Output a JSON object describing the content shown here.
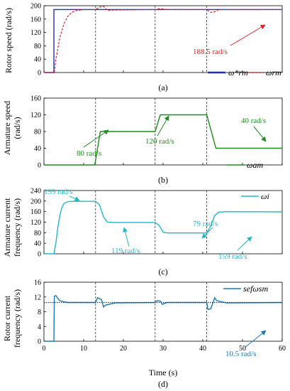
{
  "chart_data": [
    {
      "type": "line",
      "panel": "(a)",
      "ylabel": "Rotor speed (rad/s)",
      "xlim": [
        0,
        60
      ],
      "ylim": [
        0,
        200
      ],
      "yticks": [
        "0",
        "40",
        "80",
        "120",
        "160",
        "200"
      ],
      "series": [
        {
          "name": "ω*rm",
          "color": "#1f2fbf",
          "style": "solid",
          "x": [
            0,
            2.5,
            2.5,
            60
          ],
          "y": [
            0,
            0,
            188.5,
            188.5
          ]
        },
        {
          "name": "ωrm",
          "color": "#e0202a",
          "style": "dashed",
          "x": [
            0,
            2.6,
            3,
            4,
            5,
            6,
            7,
            8,
            10,
            13,
            14,
            15,
            16,
            18,
            28,
            29,
            30,
            31,
            41,
            42,
            43,
            44,
            60
          ],
          "y": [
            0,
            0,
            40,
            105,
            145,
            168,
            180,
            185,
            188,
            188.5,
            196,
            198,
            186,
            187,
            188.5,
            191,
            190,
            188.5,
            188.5,
            180,
            182,
            188,
            188.5
          ]
        }
      ],
      "annotations": [
        {
          "text": "188.5 rad/s",
          "color": "#e0202a"
        }
      ]
    },
    {
      "type": "line",
      "panel": "(b)",
      "ylabel": "Armature speed (rad/s)",
      "xlim": [
        0,
        60
      ],
      "ylim": [
        0,
        160
      ],
      "yticks": [
        "0",
        "40",
        "80",
        "120",
        "160"
      ],
      "series": [
        {
          "name": "ωam",
          "color": "#1e8c1e",
          "style": "solid",
          "x": [
            0,
            12.8,
            14.2,
            28,
            29.3,
            41,
            43.3,
            60
          ],
          "y": [
            0,
            0,
            80,
            80,
            120,
            120,
            40,
            40
          ]
        }
      ],
      "annotations": [
        {
          "text": "80 rad/s",
          "color": "#1e8c1e"
        },
        {
          "text": "120 rad/s",
          "color": "#1e8c1e"
        },
        {
          "text": "40 rad/s",
          "color": "#1e8c1e"
        }
      ]
    },
    {
      "type": "line",
      "panel": "(c)",
      "ylabel": "Armature current frequency (rad/s)",
      "xlim": [
        0,
        60
      ],
      "ylim": [
        0,
        240
      ],
      "yticks": [
        "0",
        "40",
        "80",
        "120",
        "160",
        "200",
        "240"
      ],
      "series": [
        {
          "name": "ωi",
          "color": "#20b8c8",
          "style": "solid",
          "x": [
            0,
            2.5,
            3,
            3.5,
            4,
            4.5,
            5,
            6,
            7,
            8,
            10,
            13,
            14,
            15,
            16,
            18,
            28,
            29,
            30,
            31,
            33,
            41,
            42,
            43,
            44,
            46,
            60
          ],
          "y": [
            0,
            0,
            40,
            100,
            145,
            175,
            190,
            198,
            199,
            199,
            199,
            199,
            185,
            140,
            120,
            119,
            119,
            108,
            82,
            79,
            79,
            79,
            105,
            145,
            158,
            160,
            159
          ]
        }
      ],
      "annotations": [
        {
          "text": "199 rad/s",
          "color": "#20b8c8"
        },
        {
          "text": "119 rad/s",
          "color": "#20b8c8"
        },
        {
          "text": "79 rad/s",
          "color": "#20b8c8"
        },
        {
          "text": "159 rad/s",
          "color": "#20b8c8"
        }
      ]
    },
    {
      "type": "line",
      "panel": "(d)",
      "ylabel": "Rotor current frequency (rad/s)",
      "xlabel": "Time (s)",
      "xlim": [
        0,
        60
      ],
      "ylim": [
        0,
        16
      ],
      "yticks": [
        "0",
        "4",
        "8",
        "12",
        "16"
      ],
      "xticks": [
        "0",
        "10",
        "20",
        "30",
        "40",
        "50",
        "60"
      ],
      "series": [
        {
          "name": "sefωsm",
          "color": "#1a78b8",
          "style": "solid",
          "x": [
            0,
            2.5,
            2.6,
            3,
            3.5,
            4,
            5,
            6,
            8,
            13,
            13.5,
            14.5,
            15,
            15.5,
            18,
            28,
            28.5,
            29.3,
            29.8,
            31,
            41,
            41.3,
            42,
            43,
            43.5,
            46,
            60
          ],
          "y": [
            0,
            0,
            12.2,
            12.4,
            11.6,
            11.0,
            10.7,
            10.5,
            10.5,
            10.5,
            11.8,
            11.3,
            9.3,
            9.8,
            10.4,
            10.5,
            11.0,
            10.9,
            10.0,
            10.5,
            10.5,
            8.6,
            8.8,
            11.8,
            11.0,
            10.4,
            10.5
          ]
        },
        {
          "name": "reference",
          "color": "#1a3a6a",
          "style": "dotted",
          "x": [
            0,
            60
          ],
          "y": [
            10.5,
            10.5
          ]
        }
      ],
      "annotations": [
        {
          "text": "10.5 rad/s",
          "color": "#1a78b8"
        }
      ]
    }
  ],
  "vlines": [
    13,
    28,
    41
  ],
  "legend": {
    "a_ref": "ω*rm",
    "a_meas": "ωrm",
    "b": "ωam",
    "c": "ωi",
    "d": "sefωsm"
  },
  "text": {
    "ylab_a": "Rotor speed (rad/s)",
    "ylab_b1": "Armature speed",
    "ylab_b2": "(rad/s)",
    "ylab_c1": "Armature current",
    "ylab_c2": "frequency (rad/s)",
    "ylab_d1": "Rotor current",
    "ylab_d2": "frequency (rad/s)",
    "cap_a": "(a)",
    "cap_b": "(b)",
    "cap_c": "(c)",
    "cap_d": "(d)",
    "xlabel": "Time (s)",
    "ann_a": "188.5 rad/s",
    "ann_b1": "80 rad/s",
    "ann_b2": "120 rad/s",
    "ann_b3": "40 rad/s",
    "ann_c1": "199 rad/s",
    "ann_c2": "119 rad/s",
    "ann_c3": "79 rad/s",
    "ann_c4": "159 rad/s",
    "ann_d": "10.5 rad/s"
  }
}
